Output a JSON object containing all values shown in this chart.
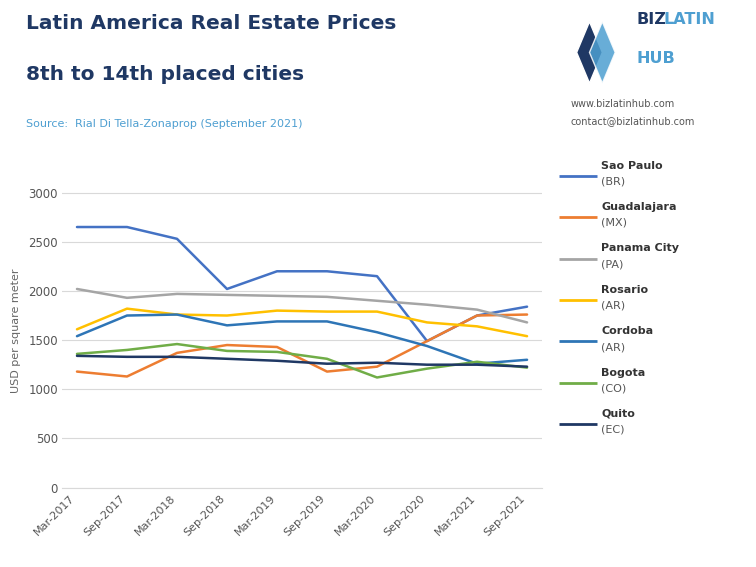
{
  "title_line1": "Latin America Real Estate Prices",
  "title_line2": "8th to 14th placed cities",
  "source": "Source:  Rial Di Tella-Zonaprop (September 2021)",
  "ylabel": "USD per square meter",
  "website": "www.bizlatinhub.com",
  "contact": "contact@bizlatinhub.com",
  "x_labels": [
    "Mar-2017",
    "Sep-2017",
    "Mar-2018",
    "Sep-2018",
    "Mar-2019",
    "Sep-2019",
    "Mar-2020",
    "Sep-2020",
    "Mar-2021",
    "Sep-2021"
  ],
  "series": [
    {
      "name": "Sao Paulo\n(BR)",
      "color": "#4472C4",
      "values": [
        2650,
        2650,
        2530,
        2020,
        2200,
        2200,
        2150,
        1490,
        1750,
        1840
      ]
    },
    {
      "name": "Guadalajara\n(MX)",
      "color": "#ED7D31",
      "values": [
        1180,
        1130,
        1370,
        1450,
        1430,
        1180,
        1230,
        1490,
        1750,
        1760
      ]
    },
    {
      "name": "Panama City\n(PA)",
      "color": "#A5A5A5",
      "values": [
        2020,
        1930,
        1970,
        1960,
        1950,
        1940,
        1900,
        1860,
        1810,
        1680
      ]
    },
    {
      "name": "Rosario\n(AR)",
      "color": "#FFC000",
      "values": [
        1610,
        1820,
        1760,
        1750,
        1800,
        1790,
        1790,
        1680,
        1640,
        1540
      ]
    },
    {
      "name": "Cordoba\n(AR)",
      "color": "#2E75B6",
      "values": [
        1540,
        1750,
        1760,
        1650,
        1690,
        1690,
        1580,
        1440,
        1260,
        1300
      ]
    },
    {
      "name": "Bogota\n(CO)",
      "color": "#70AD47",
      "values": [
        1360,
        1400,
        1460,
        1390,
        1380,
        1310,
        1120,
        1210,
        1280,
        1220
      ]
    },
    {
      "name": "Quito\n(EC)",
      "color": "#1F3864",
      "values": [
        1340,
        1330,
        1330,
        1310,
        1290,
        1260,
        1270,
        1250,
        1250,
        1230
      ]
    }
  ],
  "ylim": [
    0,
    3200
  ],
  "yticks": [
    0,
    500,
    1000,
    1500,
    2000,
    2500,
    3000
  ],
  "background_color": "#FFFFFF",
  "title_color": "#1F3864",
  "source_color": "#4E9FD1",
  "grid_color": "#D9D9D9",
  "biz_color": "#1F3864",
  "latin_hub_color": "#4E9FD1"
}
